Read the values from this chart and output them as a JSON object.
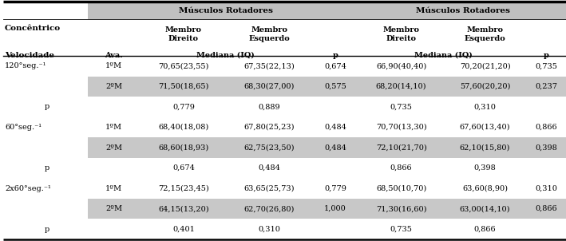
{
  "rows": [
    {
      "vel": "120°seg.⁻¹",
      "ava": "1ºM",
      "md": "70,65(23,55)",
      "me": "67,35(22,13)",
      "p1": "0,674",
      "md2": "66,90(40,40)",
      "me2": "70,20(21,20)",
      "p2": "0,735",
      "shade": false
    },
    {
      "vel": "",
      "ava": "2ºM",
      "md": "71,50(18,65)",
      "me": "68,30(27,00)",
      "p1": "0,575",
      "md2": "68,20(14,10)",
      "me2": "57,60(20,20)",
      "p2": "0,237",
      "shade": true
    },
    {
      "vel": "p",
      "ava": "",
      "md": "0,779",
      "me": "0,889",
      "p1": "",
      "md2": "0,735",
      "me2": "0,310",
      "p2": "",
      "shade": false
    },
    {
      "vel": "60°seg.⁻¹",
      "ava": "1ºM",
      "md": "68,40(18,08)",
      "me": "67,80(25,23)",
      "p1": "0,484",
      "md2": "70,70(13,30)",
      "me2": "67,60(13,40)",
      "p2": "0,866",
      "shade": false
    },
    {
      "vel": "",
      "ava": "2ºM",
      "md": "68,60(18,93)",
      "me": "62,75(23,50)",
      "p1": "0,484",
      "md2": "72,10(21,70)",
      "me2": "62,10(15,80)",
      "p2": "0,398",
      "shade": true
    },
    {
      "vel": "p",
      "ava": "",
      "md": "0,674",
      "me": "0,484",
      "p1": "",
      "md2": "0,866",
      "me2": "0,398",
      "p2": "",
      "shade": false
    },
    {
      "vel": "2x60°seg.⁻¹",
      "ava": "1ºM",
      "md": "72,15(23,45)",
      "me": "63,65(25,73)",
      "p1": "0,779",
      "md2": "68,50(10,70)",
      "me2": "63,60(8,90)",
      "p2": "0,310",
      "shade": false
    },
    {
      "vel": "",
      "ava": "2ºM",
      "md": "64,15(13,20)",
      "me": "62,70(26,80)",
      "p1": "1,000",
      "md2": "71,30(16,60)",
      "me2": "63,00(14,10)",
      "p2": "0,866",
      "shade": true
    },
    {
      "vel": "p",
      "ava": "",
      "md": "0,401",
      "me": "0,310",
      "p1": "",
      "md2": "0,735",
      "me2": "0,866",
      "p2": "",
      "shade": false
    }
  ],
  "shade_color": "#c8c8c8",
  "header_shade": "#c0c0c0",
  "font_size": 7.0,
  "bold_font_size": 7.5,
  "concentric_label": "Concêntrico",
  "velocidade_label": "Velocidade",
  "ava_label": "Ava.",
  "musculos_label": "Músculos Rotadores",
  "membro_direito": "Membro\nDireito",
  "membro_esquerdo": "Membro\nEsquerdo",
  "mediana_label": "Mediana (IQ)",
  "p_label": "p"
}
